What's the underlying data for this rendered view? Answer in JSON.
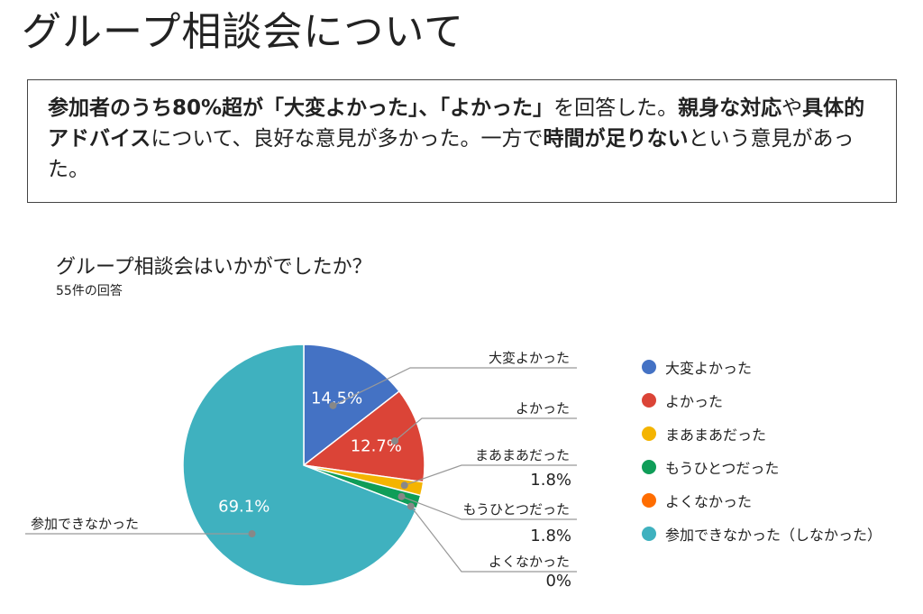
{
  "page": {
    "title": "グループ相談会について"
  },
  "summary": {
    "segments": [
      {
        "text": "参加者のうち80%超が「大変よかった」、「よかった」",
        "bold": true
      },
      {
        "text": "を回答した。",
        "bold": false
      },
      {
        "text": "親身な対応",
        "bold": true
      },
      {
        "text": "や",
        "bold": false
      },
      {
        "text": "具体的アドバイス",
        "bold": true
      },
      {
        "text": "について、良好な意見が多かった。一方で",
        "bold": false
      },
      {
        "text": "時間が足りない",
        "bold": true
      },
      {
        "text": "という意見があった。",
        "bold": false
      }
    ]
  },
  "chart_data": {
    "type": "pie",
    "title": "グループ相談会はいかがでしたか？",
    "subtitle": "55件の回答",
    "slices": [
      {
        "label": "大変よかった",
        "legend": "大変よかった",
        "value": 14.5,
        "display": "14.5%",
        "color": "#4472c4"
      },
      {
        "label": "よかった",
        "legend": "よかった",
        "value": 12.7,
        "display": "12.7%",
        "color": "#db4437"
      },
      {
        "label": "まあまあだった",
        "legend": "まあまあだった",
        "value": 1.8,
        "display": "1.8%",
        "color": "#f4b400"
      },
      {
        "label": "もうひとつだった",
        "legend": "もうひとつだった",
        "value": 1.8,
        "display": "1.8%",
        "color": "#0f9d58"
      },
      {
        "label": "よくなかった",
        "legend": "よくなかった",
        "value": 0,
        "display": "0%",
        "color": "#ff6d00"
      },
      {
        "label": "参加できなかった",
        "legend": "参加できなかった（しなかった）",
        "value": 69.1,
        "display": "69.1%",
        "color": "#3fb1bf"
      }
    ],
    "legend_position": "right"
  }
}
